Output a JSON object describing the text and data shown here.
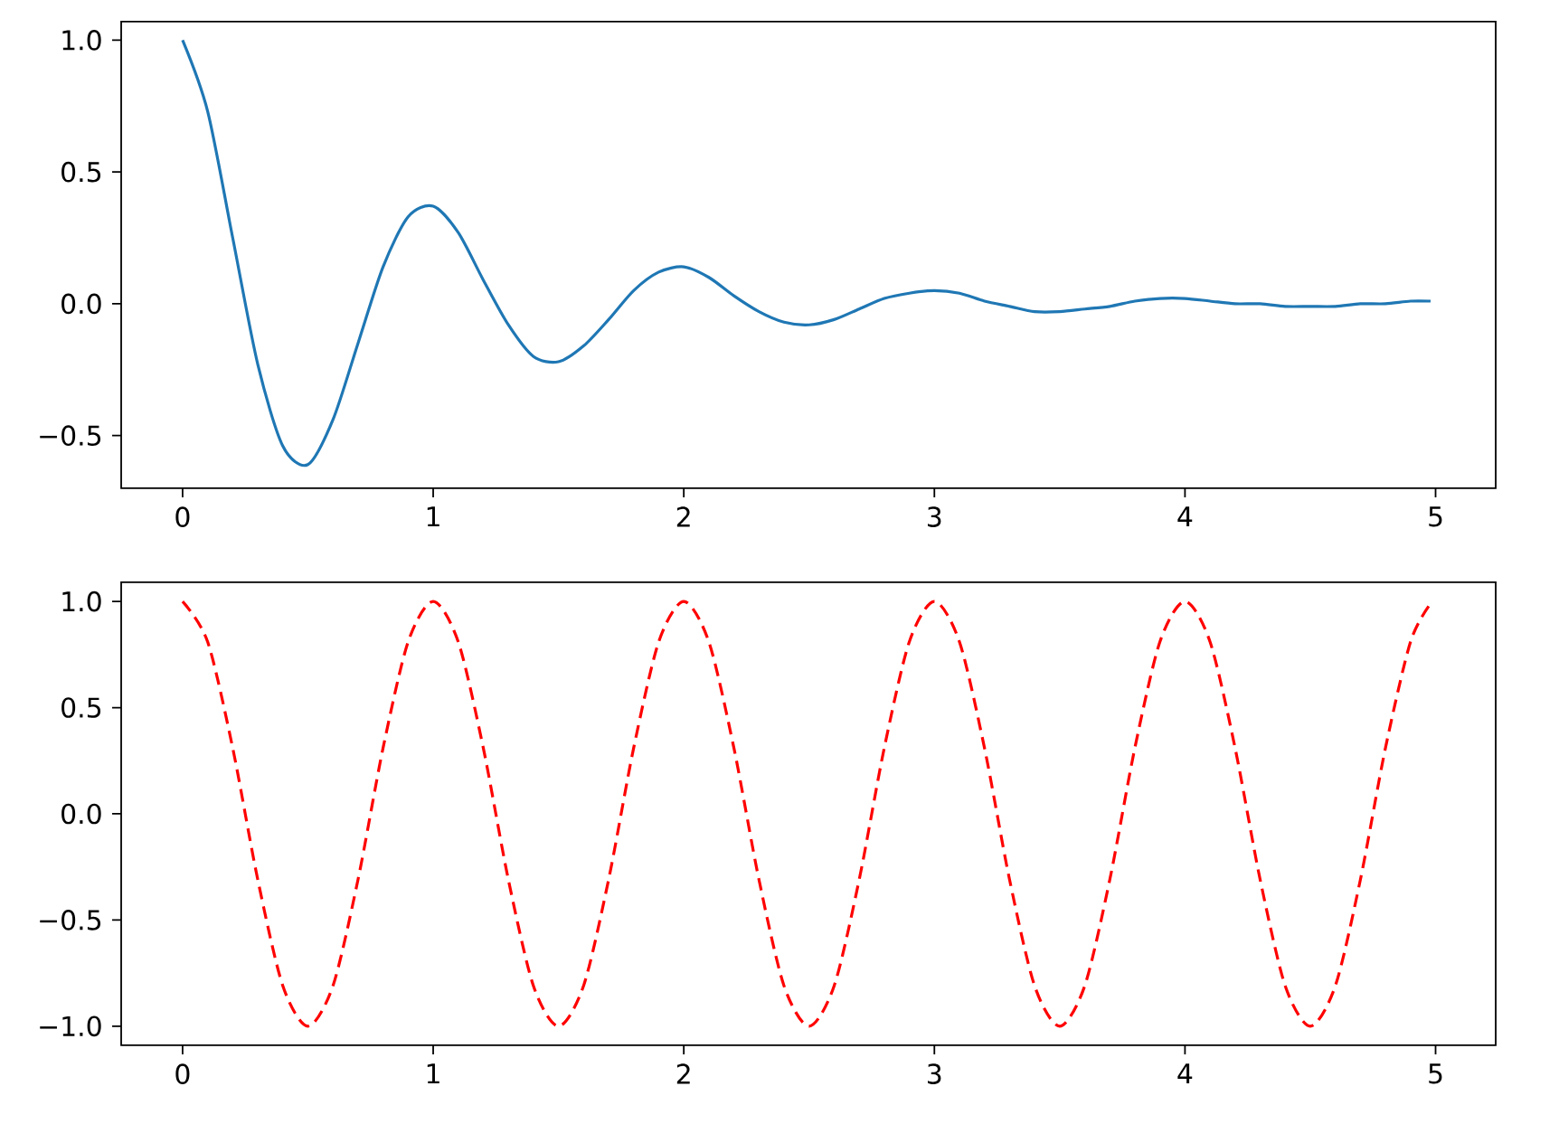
{
  "chart_data": [
    {
      "type": "line",
      "marker": "none",
      "line_style": "solid",
      "xlim": [
        -0.245,
        5.24
      ],
      "ylim": [
        -0.7,
        1.07
      ],
      "xticks": [
        0,
        1,
        2,
        3,
        4,
        5
      ],
      "yticks": [
        {
          "value": -0.5,
          "label": "−0.5"
        },
        {
          "value": 0,
          "label": "0.0"
        },
        {
          "value": 0.5,
          "label": "0.5"
        },
        {
          "value": 1,
          "label": "1.0"
        }
      ],
      "series": [
        {
          "color": "#1f77b4",
          "x": [
            0,
            0.1,
            0.2,
            0.3,
            0.4,
            0.5,
            0.6,
            0.7,
            0.8,
            0.9,
            1.0,
            1.1,
            1.2,
            1.3,
            1.4,
            1.5,
            1.6,
            1.7,
            1.8,
            1.9,
            2.0,
            2.1,
            2.2,
            2.3,
            2.4,
            2.5,
            2.6,
            2.7,
            2.8,
            2.9,
            3.0,
            3.1,
            3.2,
            3.3,
            3.4,
            3.5,
            3.6,
            3.7,
            3.8,
            3.9,
            4.0,
            4.1,
            4.2,
            4.3,
            4.4,
            4.5,
            4.6,
            4.7,
            4.8,
            4.9,
            4.98
          ],
          "values": [
            1.0,
            0.73,
            0.25,
            -0.23,
            -0.54,
            -0.61,
            -0.44,
            -0.15,
            0.14,
            0.33,
            0.37,
            0.27,
            0.09,
            -0.08,
            -0.2,
            -0.22,
            -0.16,
            -0.06,
            0.05,
            0.12,
            0.14,
            0.1,
            0.03,
            -0.03,
            -0.07,
            -0.08,
            -0.06,
            -0.02,
            0.02,
            0.04,
            0.05,
            0.04,
            0.01,
            -0.01,
            -0.03,
            -0.03,
            -0.02,
            -0.01,
            0.01,
            0.02,
            0.02,
            0.01,
            0.0,
            0.0,
            -0.01,
            -0.01,
            -0.01,
            0.0,
            0.0,
            0.01,
            0.01
          ]
        }
      ]
    },
    {
      "type": "line",
      "marker": "none",
      "line_style": "dashed",
      "xlim": [
        -0.245,
        5.24
      ],
      "ylim": [
        -1.09,
        1.09
      ],
      "xticks": [
        0,
        1,
        2,
        3,
        4,
        5
      ],
      "yticks": [
        {
          "value": -1,
          "label": "−1.0"
        },
        {
          "value": -0.5,
          "label": "−0.5"
        },
        {
          "value": 0,
          "label": "0.0"
        },
        {
          "value": 0.5,
          "label": "0.5"
        },
        {
          "value": 1,
          "label": "1.0"
        }
      ],
      "series": [
        {
          "color": "#ff0000",
          "x": [
            0,
            0.1,
            0.2,
            0.3,
            0.4,
            0.5,
            0.6,
            0.7,
            0.8,
            0.9,
            1.0,
            1.1,
            1.2,
            1.3,
            1.4,
            1.5,
            1.6,
            1.7,
            1.8,
            1.9,
            2.0,
            2.1,
            2.2,
            2.3,
            2.4,
            2.5,
            2.6,
            2.7,
            2.8,
            2.9,
            3.0,
            3.1,
            3.2,
            3.3,
            3.4,
            3.5,
            3.6,
            3.7,
            3.8,
            3.9,
            4.0,
            4.1,
            4.2,
            4.3,
            4.4,
            4.5,
            4.6,
            4.7,
            4.8,
            4.9,
            4.98
          ],
          "values": [
            1,
            0.81,
            0.31,
            -0.31,
            -0.81,
            -1,
            -0.81,
            -0.31,
            0.31,
            0.81,
            1,
            0.81,
            0.31,
            -0.31,
            -0.81,
            -1,
            -0.81,
            -0.31,
            0.31,
            0.81,
            1,
            0.81,
            0.31,
            -0.31,
            -0.81,
            -1,
            -0.81,
            -0.31,
            0.31,
            0.81,
            1,
            0.81,
            0.31,
            -0.31,
            -0.81,
            -1,
            -0.81,
            -0.31,
            0.31,
            0.81,
            1,
            0.81,
            0.31,
            -0.31,
            -0.81,
            -1,
            -0.81,
            -0.31,
            0.31,
            0.81,
            0.99
          ]
        }
      ]
    }
  ]
}
